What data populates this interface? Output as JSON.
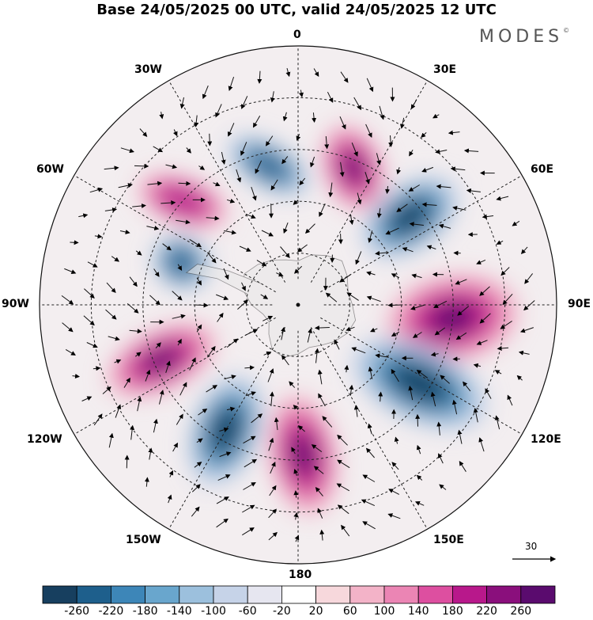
{
  "title": "Base 24/05/2025 00 UTC, valid 24/05/2025 12 UTC",
  "brand": "MODES",
  "brand_mark": "©",
  "longitude_labels": {
    "n0": "0",
    "e30": "30E",
    "e60": "60E",
    "e90": "90E",
    "e120": "120E",
    "e150": "150E",
    "s180": "180",
    "w150": "150W",
    "w120": "120W",
    "w90": "90W",
    "w60": "60W",
    "w30": "30W"
  },
  "reference_vector_label": "30",
  "colorbar": {
    "colors": [
      "#173f5f",
      "#1e5f8c",
      "#3d86b8",
      "#69a6cd",
      "#9cc0dd",
      "#c6d3e8",
      "#e6e6f0",
      "#ffffff",
      "#f7d8dc",
      "#f3b3c8",
      "#eb85b4",
      "#dd4fa0",
      "#b8188b",
      "#8a0f7c",
      "#5a0b6e"
    ],
    "tick_labels": [
      "-260",
      "-220",
      "-180",
      "-140",
      "-100",
      "-60",
      "-20",
      "20",
      "60",
      "100",
      "140",
      "180",
      "220",
      "260"
    ]
  },
  "anomaly_centers": [
    {
      "name": "neg-60E",
      "sign": "negative",
      "strength": 0.95
    },
    {
      "name": "pos-90E",
      "sign": "positive",
      "strength": 0.95
    },
    {
      "name": "neg-120E",
      "sign": "negative",
      "strength": 0.9
    },
    {
      "name": "pos-180",
      "sign": "positive",
      "strength": 0.85
    },
    {
      "name": "neg-150W",
      "sign": "negative",
      "strength": 0.9
    },
    {
      "name": "pos-110W",
      "sign": "positive",
      "strength": 0.95
    },
    {
      "name": "neg-70W",
      "sign": "negative",
      "strength": 0.6
    },
    {
      "name": "pos-45W",
      "sign": "positive",
      "strength": 0.6
    },
    {
      "name": "neg-15W",
      "sign": "negative",
      "strength": 0.55
    },
    {
      "name": "pos-20E",
      "sign": "positive",
      "strength": 0.8
    }
  ]
}
